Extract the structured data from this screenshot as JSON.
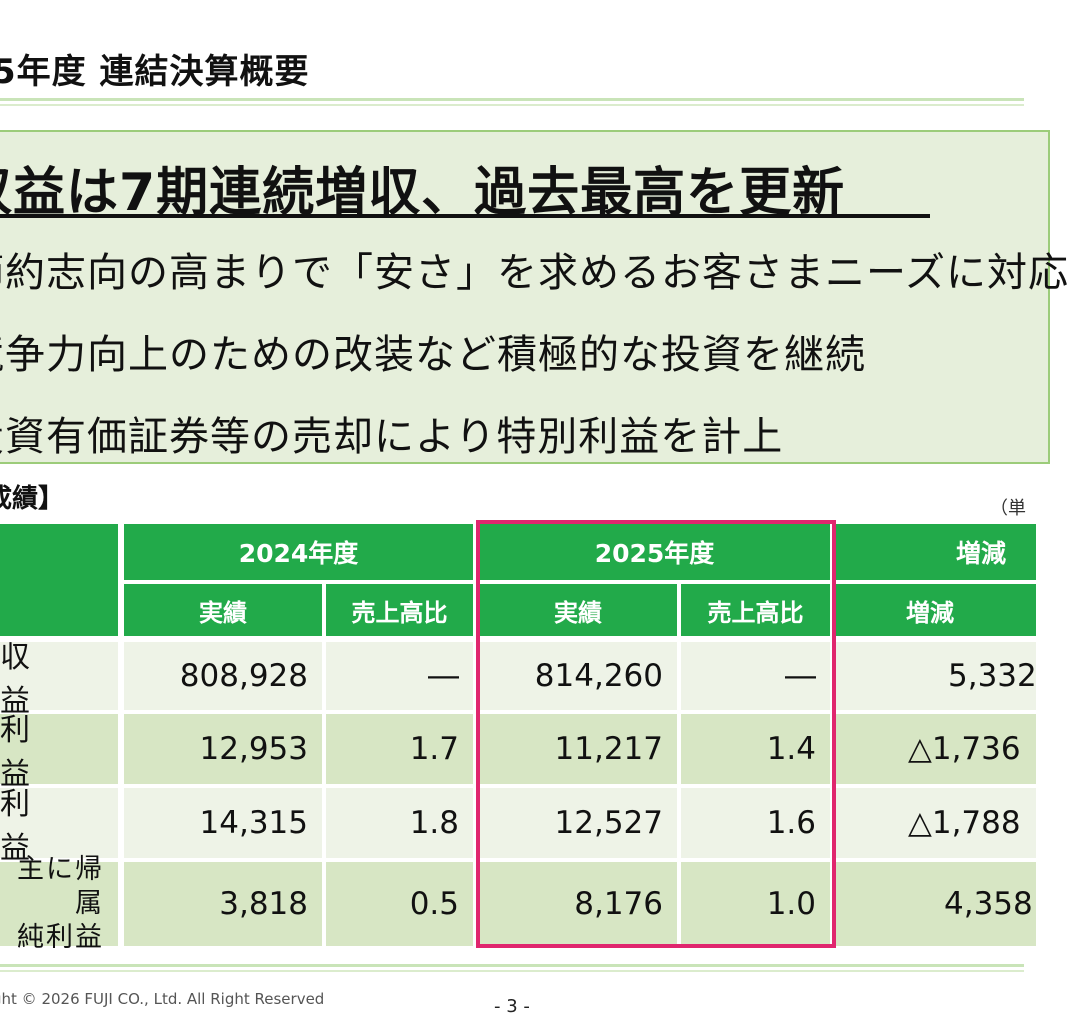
{
  "page": {
    "title": "5年度 連結決算概要",
    "page_number": "- 3 -",
    "copyright": "ght © 2026 FUJI CO., Ltd. All Right Reserved"
  },
  "summary": {
    "headline": "収益は7期連続増収、過去最高を更新",
    "bullets": [
      "節約志向の高まりで「安さ」を求めるお客さまニーズに対応",
      "競争力向上のための改装など積極的な投資を継続",
      "投資有価証券等の売却により特別利益を計上"
    ]
  },
  "results": {
    "section_label": "成績】",
    "unit_label": "（単",
    "headers": {
      "fy2024": "2024年度",
      "fy2025": "2025年度",
      "change": "増減",
      "actual": "実績",
      "ratio": "売上高比",
      "diff": "増減"
    },
    "rows": [
      {
        "label": "収 益",
        "actual_2024": "808,928",
        "ratio_2024": "―",
        "actual_2025": "814,260",
        "ratio_2025": "―",
        "diff": "5,332"
      },
      {
        "label": "利 益",
        "actual_2024": "12,953",
        "ratio_2024": "1.7",
        "actual_2025": "11,217",
        "ratio_2025": "1.4",
        "diff": "△1,736"
      },
      {
        "label": "利 益",
        "actual_2024": "14,315",
        "ratio_2024": "1.8",
        "actual_2025": "12,527",
        "ratio_2025": "1.6",
        "diff": "△1,788"
      },
      {
        "label_line1": "主に帰属",
        "label_line2": "純利益",
        "actual_2024": "3,818",
        "ratio_2024": "0.5",
        "actual_2025": "8,176",
        "ratio_2025": "1.0",
        "diff": "4,358"
      }
    ]
  },
  "colors": {
    "header_green": "#22aa4a",
    "highlight": "#e0266e",
    "box_fill": "#e6efdb"
  }
}
